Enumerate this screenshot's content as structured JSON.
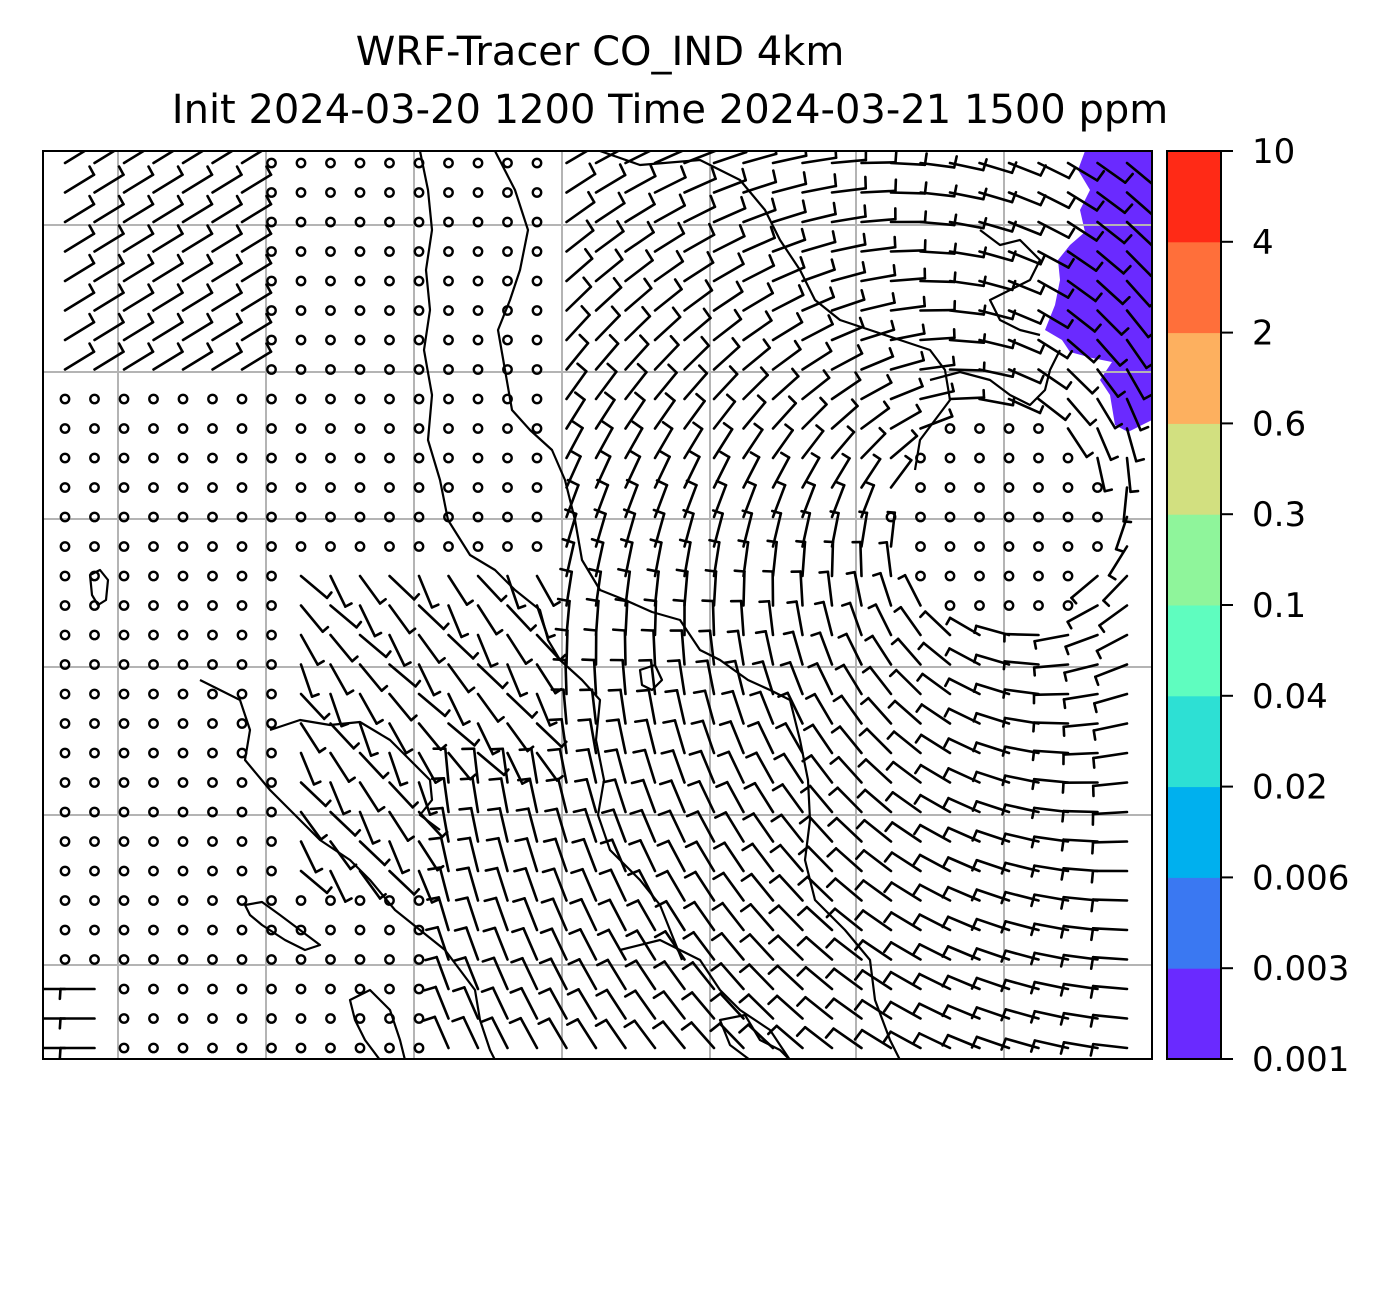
{
  "title": {
    "line1": "WRF-Tracer CO_IND 4km",
    "line2": "Init 2024-03-20 1200 Time 2024-03-21 1500 ppm"
  },
  "colorbar": {
    "levels": [
      "0.001",
      "0.003",
      "0.006",
      "0.02",
      "0.04",
      "0.1",
      "0.3",
      "0.6",
      "2",
      "4",
      "10"
    ],
    "colors": [
      "#6a2aff",
      "#3a78f2",
      "#00b0ee",
      "#2de0d4",
      "#5ffdbf",
      "#8ff59b",
      "#d2e080",
      "#fdb05f",
      "#ff6f3a",
      "#ff2a16"
    ]
  },
  "map": {
    "tracer_color": "#6a2aff",
    "gridline_color": "#b4b4b4",
    "wind_barb_color": "#000000",
    "coastline_color": "#000000"
  }
}
